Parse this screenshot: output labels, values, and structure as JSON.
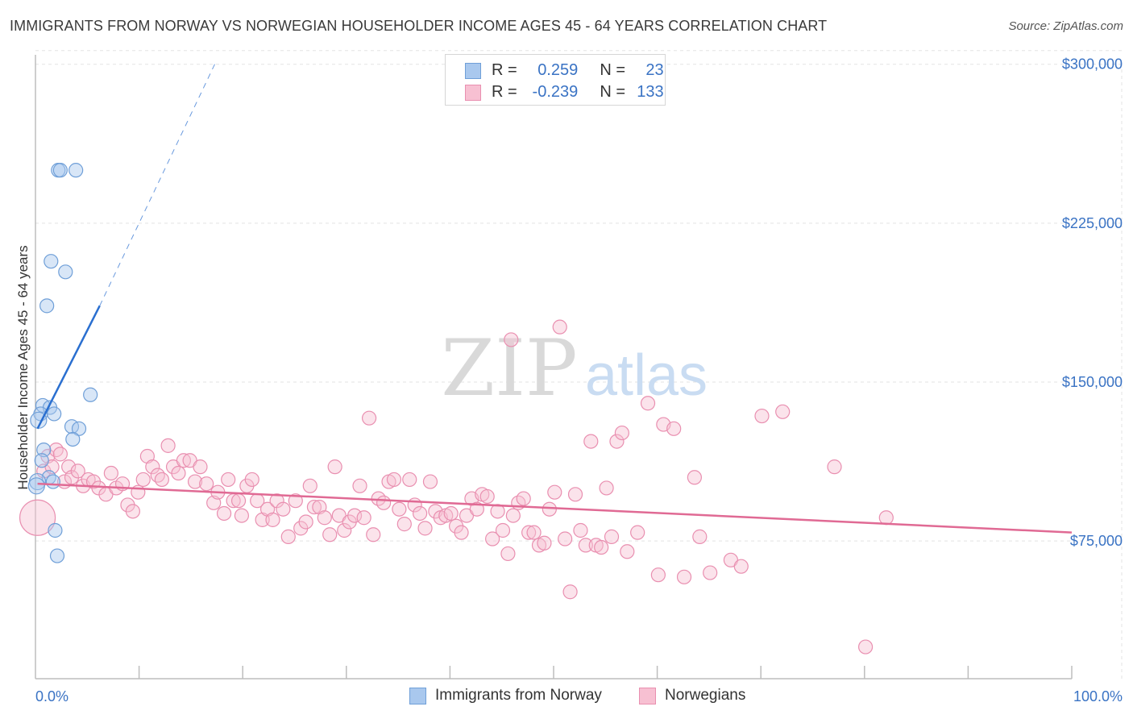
{
  "title": "IMMIGRANTS FROM NORWAY VS NORWEGIAN HOUSEHOLDER INCOME AGES 45 - 64 YEARS CORRELATION CHART",
  "source": "Source: ZipAtlas.com",
  "watermark": {
    "zip": "ZIP",
    "atlas": "atlas"
  },
  "legend_top": {
    "rows": [
      {
        "r_label": "R =",
        "r_value": "0.259",
        "n_label": "N =",
        "n_value": "23",
        "color": "#a9c8ee",
        "border": "#6f9fd8"
      },
      {
        "r_label": "R =",
        "r_value": "-0.239",
        "n_label": "N =",
        "n_value": "133",
        "color": "#f7c0d2",
        "border": "#e98fb0"
      }
    ]
  },
  "legend_bottom": {
    "items": [
      {
        "label": "Immigrants from Norway",
        "color": "#a9c8ee",
        "border": "#6f9fd8"
      },
      {
        "label": "Norwegians",
        "color": "#f7c0d2",
        "border": "#e98fb0"
      }
    ]
  },
  "colors": {
    "blue_fill": "rgba(169,200,238,0.45)",
    "blue_stroke": "#6f9fd8",
    "blue_line": "#2a6fd0",
    "pink_fill": "rgba(247,192,210,0.45)",
    "pink_stroke": "#e98fb0",
    "pink_line": "#e06a94",
    "grid": "#e3e3e3",
    "tick_text": "#3a73c4"
  },
  "chart_data": {
    "type": "scatter",
    "title": "IMMIGRANTS FROM NORWAY VS NORWEGIAN HOUSEHOLDER INCOME AGES 45 - 64 YEARS CORRELATION CHART",
    "xlabel": "",
    "ylabel": "Householder Income Ages 45 - 64 years",
    "xlim": [
      0,
      100
    ],
    "ylim": [
      10000,
      307500
    ],
    "x_tick_labels": [
      {
        "value": 0,
        "label": "0.0%"
      },
      {
        "value": 100,
        "label": "100.0%"
      }
    ],
    "y_ticks": [
      {
        "value": 75000,
        "label": "$75,000"
      },
      {
        "value": 150000,
        "label": "$150,000"
      },
      {
        "value": 225000,
        "label": "$225,000"
      },
      {
        "value": 300000,
        "label": "$300,000"
      }
    ],
    "x_minor_ticks": [
      10,
      20,
      30,
      40,
      50,
      60,
      70,
      80,
      90,
      100
    ],
    "series": [
      {
        "name": "Immigrants from Norway",
        "points": [
          [
            2.2,
            250000
          ],
          [
            2.4,
            250000
          ],
          [
            3.9,
            250000
          ],
          [
            1.5,
            207000
          ],
          [
            2.9,
            202000
          ],
          [
            1.1,
            186000
          ],
          [
            5.3,
            144000
          ],
          [
            0.7,
            139000
          ],
          [
            1.4,
            138000
          ],
          [
            0.5,
            135000
          ],
          [
            1.8,
            135000
          ],
          [
            0.3,
            132000
          ],
          [
            3.5,
            129000
          ],
          [
            4.2,
            128000
          ],
          [
            3.6,
            123000
          ],
          [
            0.8,
            118000
          ],
          [
            0.6,
            113000
          ],
          [
            1.3,
            105000
          ],
          [
            1.7,
            103000
          ],
          [
            0.2,
            103000
          ],
          [
            0.1,
            101000
          ],
          [
            1.9,
            80000
          ],
          [
            2.1,
            68000
          ]
        ],
        "trendline": {
          "x": [
            0.2,
            6.2
          ],
          "y": [
            128000,
            186000
          ]
        },
        "trendline_extension": {
          "x": [
            6.2,
            17.3
          ],
          "y": [
            186000,
            300000
          ]
        }
      },
      {
        "name": "Norwegians",
        "points": [
          [
            0.2,
            86000
          ],
          [
            0.8,
            108000
          ],
          [
            1.2,
            115000
          ],
          [
            1.6,
            110000
          ],
          [
            2.0,
            118000
          ],
          [
            2.4,
            116000
          ],
          [
            2.8,
            103000
          ],
          [
            3.2,
            110000
          ],
          [
            3.5,
            105000
          ],
          [
            4.1,
            108000
          ],
          [
            4.6,
            101000
          ],
          [
            5.1,
            104000
          ],
          [
            5.6,
            103000
          ],
          [
            6.1,
            100000
          ],
          [
            6.8,
            97000
          ],
          [
            7.3,
            107000
          ],
          [
            7.8,
            100000
          ],
          [
            8.4,
            102000
          ],
          [
            8.9,
            92000
          ],
          [
            9.4,
            89000
          ],
          [
            9.9,
            98000
          ],
          [
            10.4,
            104000
          ],
          [
            10.8,
            115000
          ],
          [
            11.3,
            110000
          ],
          [
            11.8,
            106000
          ],
          [
            12.2,
            104000
          ],
          [
            12.8,
            120000
          ],
          [
            13.3,
            110000
          ],
          [
            13.8,
            107000
          ],
          [
            14.3,
            113000
          ],
          [
            14.9,
            113000
          ],
          [
            15.4,
            103000
          ],
          [
            15.9,
            110000
          ],
          [
            16.5,
            102000
          ],
          [
            17.2,
            93000
          ],
          [
            17.6,
            98000
          ],
          [
            18.2,
            88000
          ],
          [
            18.6,
            104000
          ],
          [
            19.1,
            94000
          ],
          [
            19.6,
            94000
          ],
          [
            19.9,
            87000
          ],
          [
            20.4,
            101000
          ],
          [
            20.9,
            104000
          ],
          [
            21.4,
            94000
          ],
          [
            21.9,
            85000
          ],
          [
            22.4,
            90000
          ],
          [
            22.9,
            85000
          ],
          [
            23.3,
            94000
          ],
          [
            23.9,
            90000
          ],
          [
            24.4,
            77000
          ],
          [
            25.1,
            94000
          ],
          [
            25.6,
            81000
          ],
          [
            26.1,
            84000
          ],
          [
            26.5,
            101000
          ],
          [
            26.9,
            91000
          ],
          [
            27.4,
            91000
          ],
          [
            27.9,
            86000
          ],
          [
            28.4,
            78000
          ],
          [
            28.9,
            110000
          ],
          [
            29.3,
            87000
          ],
          [
            29.8,
            80000
          ],
          [
            30.3,
            84000
          ],
          [
            30.8,
            87000
          ],
          [
            31.3,
            101000
          ],
          [
            31.7,
            86000
          ],
          [
            32.2,
            133000
          ],
          [
            32.6,
            78000
          ],
          [
            33.1,
            95000
          ],
          [
            33.6,
            93000
          ],
          [
            34.1,
            103000
          ],
          [
            34.6,
            104000
          ],
          [
            35.1,
            90000
          ],
          [
            35.6,
            83000
          ],
          [
            36.1,
            104000
          ],
          [
            36.6,
            92000
          ],
          [
            37.1,
            88000
          ],
          [
            37.6,
            81000
          ],
          [
            38.1,
            103000
          ],
          [
            38.6,
            89000
          ],
          [
            39.1,
            86000
          ],
          [
            39.6,
            87000
          ],
          [
            40.1,
            88000
          ],
          [
            40.6,
            82000
          ],
          [
            41.1,
            79000
          ],
          [
            41.6,
            87000
          ],
          [
            42.1,
            95000
          ],
          [
            42.6,
            90000
          ],
          [
            43.1,
            97000
          ],
          [
            43.6,
            96000
          ],
          [
            44.1,
            76000
          ],
          [
            44.6,
            89000
          ],
          [
            45.1,
            80000
          ],
          [
            45.6,
            69000
          ],
          [
            45.9,
            170000
          ],
          [
            46.1,
            87000
          ],
          [
            46.6,
            93000
          ],
          [
            47.1,
            95000
          ],
          [
            47.6,
            79000
          ],
          [
            48.1,
            79000
          ],
          [
            48.6,
            73000
          ],
          [
            49.1,
            74000
          ],
          [
            49.6,
            90000
          ],
          [
            50.1,
            98000
          ],
          [
            50.6,
            176000
          ],
          [
            51.1,
            76000
          ],
          [
            51.6,
            51000
          ],
          [
            52.1,
            97000
          ],
          [
            52.6,
            80000
          ],
          [
            53.1,
            73000
          ],
          [
            53.6,
            122000
          ],
          [
            54.1,
            73000
          ],
          [
            54.6,
            72000
          ],
          [
            55.1,
            100000
          ],
          [
            55.6,
            77000
          ],
          [
            56.1,
            122000
          ],
          [
            56.6,
            126000
          ],
          [
            57.1,
            70000
          ],
          [
            58.1,
            79000
          ],
          [
            59.1,
            140000
          ],
          [
            60.1,
            59000
          ],
          [
            60.6,
            130000
          ],
          [
            61.6,
            128000
          ],
          [
            62.6,
            58000
          ],
          [
            63.6,
            105000
          ],
          [
            64.1,
            77000
          ],
          [
            65.1,
            60000
          ],
          [
            67.1,
            66000
          ],
          [
            68.1,
            63000
          ],
          [
            70.1,
            134000
          ],
          [
            72.1,
            136000
          ],
          [
            77.1,
            110000
          ],
          [
            80.1,
            25000
          ],
          [
            82.1,
            86000
          ]
        ],
        "trendline": {
          "x": [
            0.2,
            100
          ],
          "y": [
            102000,
            79000
          ]
        }
      }
    ]
  }
}
